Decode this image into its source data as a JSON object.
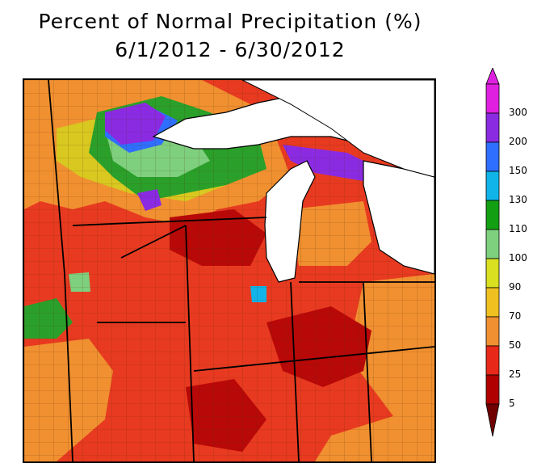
{
  "title": {
    "line1": "Percent of Normal Precipitation (%)",
    "line2": "6/1/2012 - 6/30/2012"
  },
  "legend": {
    "bins": [
      {
        "label": "300",
        "color": "#e020e0"
      },
      {
        "label": "200",
        "color": "#8a2be2"
      },
      {
        "label": "150",
        "color": "#2f6fff"
      },
      {
        "label": "130",
        "color": "#10b4e8"
      },
      {
        "label": "110",
        "color": "#12a012"
      },
      {
        "label": "100",
        "color": "#7ed07e"
      },
      {
        "label": "90",
        "color": "#d8e020"
      },
      {
        "label": "70",
        "color": "#f0c020"
      },
      {
        "label": "50",
        "color": "#f09030"
      },
      {
        "label": "25",
        "color": "#e82818"
      },
      {
        "label": "5",
        "color": "#b00000"
      }
    ],
    "bottom_color": "#700000"
  },
  "colors": {
    "lake": "#ffffff",
    "border": "#000000",
    "dry": "#e83a20",
    "very_dry": "#b80808",
    "orange": "#f09030",
    "yellow": "#d8d020",
    "green": "#2aa02a",
    "light_green": "#7ed07e",
    "blue": "#2f6fff",
    "purple": "#8a2be2"
  }
}
